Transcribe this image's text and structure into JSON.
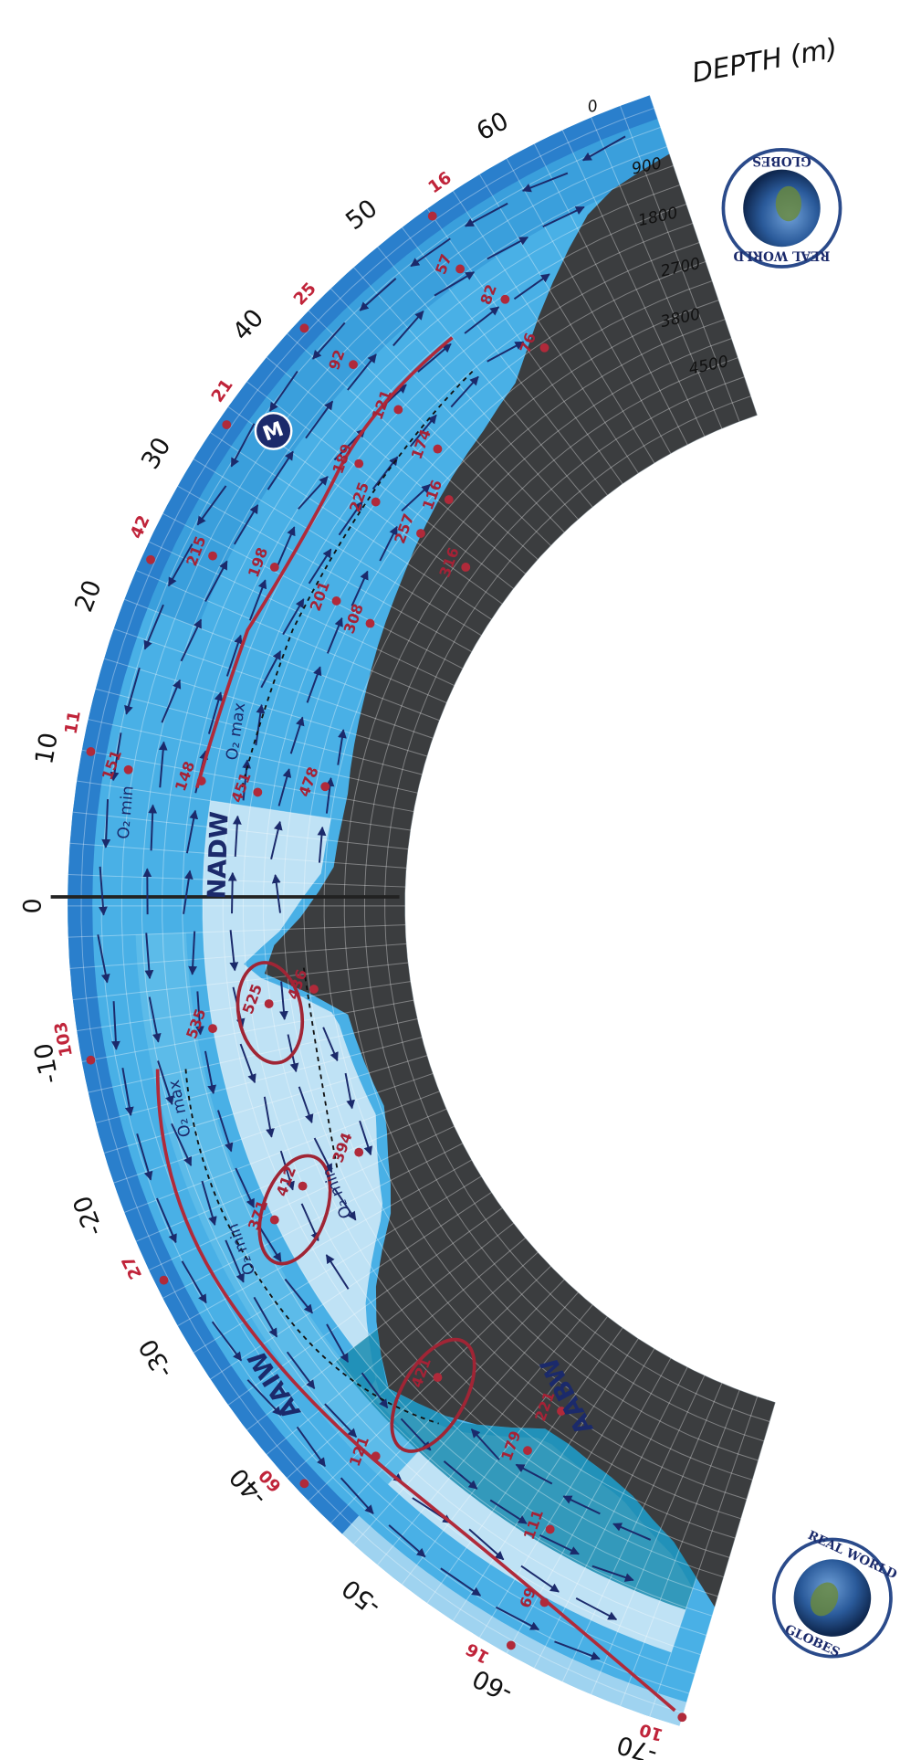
{
  "title": "DEPTH (m)",
  "depth_labels": [
    "0",
    "900",
    "1800",
    "2700",
    "3800",
    "4500"
  ],
  "latitude_labels": [
    "60",
    "50",
    "40",
    "30",
    "20",
    "10",
    "0",
    "-10",
    "-20",
    "-30",
    "-40",
    "-50",
    "-60",
    "-70"
  ],
  "surface_values": [
    "16",
    "25",
    "21",
    "42",
    "11",
    "103",
    "27",
    "60",
    "16",
    "10"
  ],
  "station_values": [
    "57",
    "92",
    "82",
    "76",
    "121",
    "189",
    "225",
    "174",
    "116",
    "257",
    "316",
    "215",
    "198",
    "201",
    "308",
    "151",
    "148",
    "451",
    "478",
    "535",
    "525",
    "436",
    "412",
    "371",
    "394",
    "421",
    "121",
    "179",
    "221",
    "111",
    "69"
  ],
  "water_masses": [
    "NADW",
    "AAIW",
    "AABW"
  ],
  "oxygen_labels": [
    "O₂ min",
    "O₂ max",
    "O₂ max",
    "O₂ min",
    "O₂ min"
  ],
  "marker": "M",
  "logo": {
    "top": "REAL WORLD",
    "bottom": "GLOBES"
  }
}
